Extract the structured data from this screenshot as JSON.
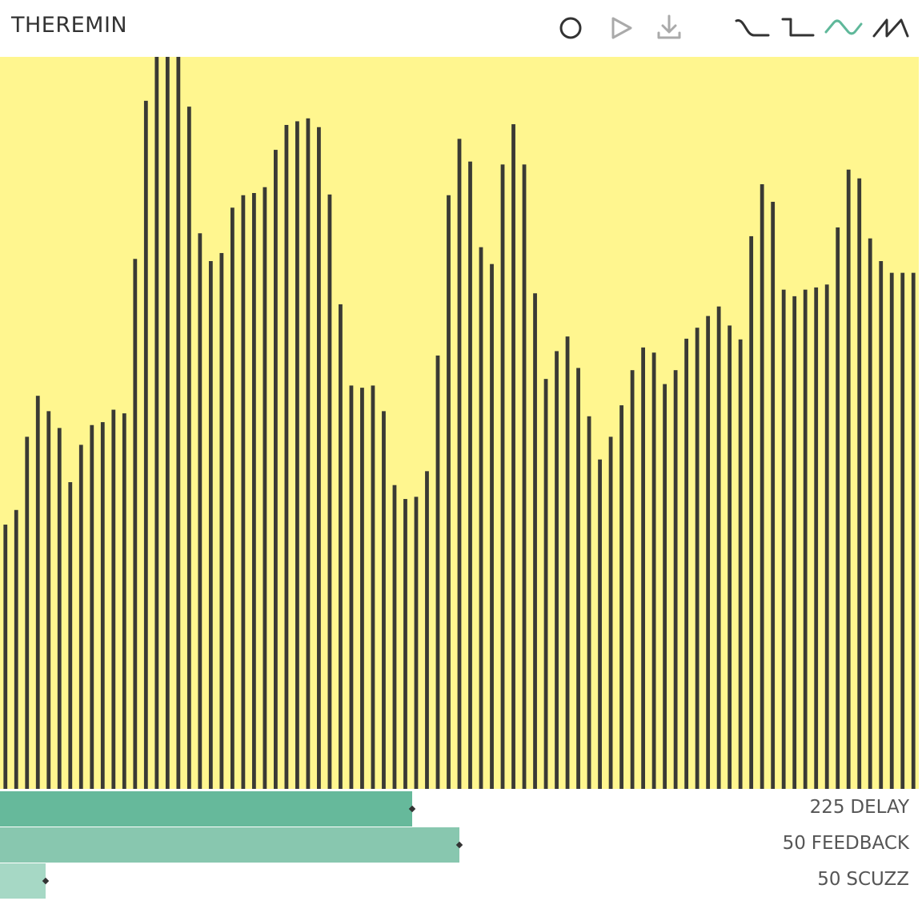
{
  "header": {
    "title": "THEREMIN"
  },
  "visualizer": {
    "levels": [
      36.1,
      38.1,
      48.1,
      53.7,
      51.6,
      49.3,
      41.9,
      47.0,
      49.7,
      50.1,
      51.8,
      51.3,
      72.4,
      94.0,
      100,
      100,
      100,
      93.2,
      75.9,
      72.1,
      73.2,
      79.4,
      81.1,
      81.4,
      82.2,
      87.3,
      90.7,
      91.2,
      91.6,
      90.4,
      81.2,
      66.2,
      55.1,
      54.8,
      55.1,
      51.6,
      41.5,
      39.6,
      39.9,
      43.4,
      59.2,
      81.1,
      88.8,
      85.7,
      74.0,
      71.7,
      85.3,
      90.8,
      85.3,
      67.7,
      56.0,
      59.8,
      61.8,
      57.5,
      50.9,
      45.0,
      48.1,
      52.4,
      57.2,
      60.3,
      59.6,
      55.3,
      57.2,
      61.5,
      63.0,
      64.6,
      65.9,
      63.3,
      61.4,
      75.5,
      82.6,
      80.2,
      68.2,
      67.3,
      68.2,
      68.5,
      68.9,
      76.7,
      84.6,
      83.4,
      75.2,
      72.1,
      70.5,
      70.5,
      70.5
    ],
    "max": 100,
    "color": "#3a3a34",
    "background": "#fff68f"
  },
  "sliders": [
    {
      "value": 225,
      "name": "DELAY",
      "position": 44.9,
      "color": "#66b99b"
    },
    {
      "value": 50,
      "name": "FEEDBACK",
      "position": 50,
      "color": "#88c7af"
    },
    {
      "value": 50,
      "name": "SCUZZ",
      "position": 5,
      "color": "#a6d8c5"
    }
  ]
}
